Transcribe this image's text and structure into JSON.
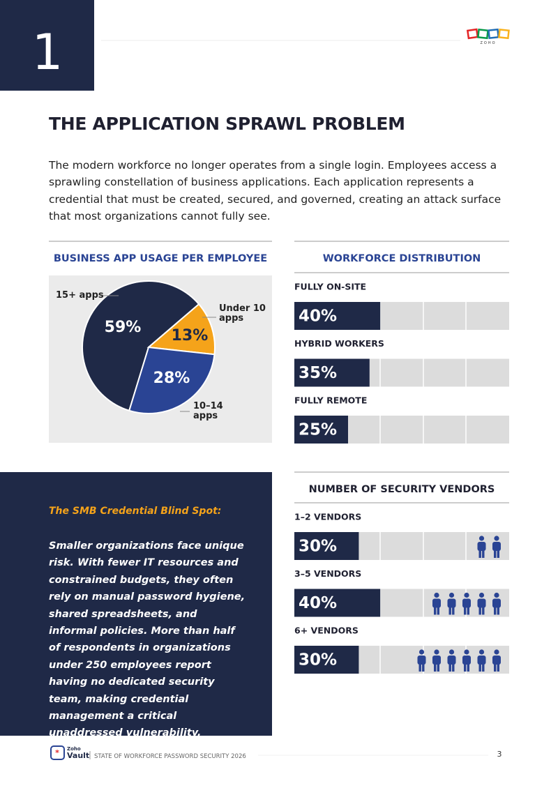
{
  "header": {
    "section_number": "1",
    "logo": "ZOHO"
  },
  "title": "THE APPLICATION SPRAWL PROBLEM",
  "intro": "The modern workforce no longer operates from a single login. Employees access a sprawling constellation of business applications. Each application represents a credential that must be created, secured, and governed, creating an attack surface that most organizations cannot fully see.",
  "chart_data": [
    {
      "type": "pie",
      "title": "BUSINESS APP USAGE PER EMPLOYEE",
      "categories": [
        "15+ apps",
        "Under 10 apps",
        "10–14 apps"
      ],
      "values": [
        59,
        13,
        28
      ],
      "value_labels": [
        "59%",
        "13%",
        "28%"
      ],
      "colors": [
        "#1f2947",
        "#f5a31a",
        "#2a4494"
      ]
    },
    {
      "type": "bar",
      "orientation": "horizontal",
      "title": "WORKFORCE DISTRIBUTION",
      "categories": [
        "FULLY ON-SITE",
        "HYBRID WORKERS",
        "FULLY REMOTE"
      ],
      "values": [
        40,
        35,
        25
      ],
      "value_labels": [
        "40%",
        "35%",
        "25%"
      ],
      "xlim": [
        0,
        100
      ],
      "color": "#1f2947"
    },
    {
      "type": "bar",
      "orientation": "horizontal",
      "title": "NUMBER OF SECURITY VENDORS",
      "categories": [
        "1–2 VENDORS",
        "3–5 VENDORS",
        "6+ VENDORS"
      ],
      "values": [
        30,
        40,
        30
      ],
      "value_labels": [
        "30%",
        "40%",
        "30%"
      ],
      "xlim": [
        0,
        100
      ],
      "color": "#1f2947",
      "icon_counts": [
        2,
        5,
        6
      ],
      "icon_color": "#2a4494"
    }
  ],
  "callout": {
    "heading": "The SMB Credential Blind Spot:",
    "body": "Smaller organizations face unique risk. With fewer IT resources and constrained budgets, they often rely on manual password hygiene, shared spreadsheets, and informal policies. More than half of respondents in organizations under 250 employees report having no dedicated security team, making credential management a critical unaddressed vulnerability."
  },
  "footer": {
    "logo_top": "Zoho",
    "logo": "Vault",
    "text": "STATE OF WORKFORCE PASSWORD SECURITY 2026",
    "page": "3"
  }
}
